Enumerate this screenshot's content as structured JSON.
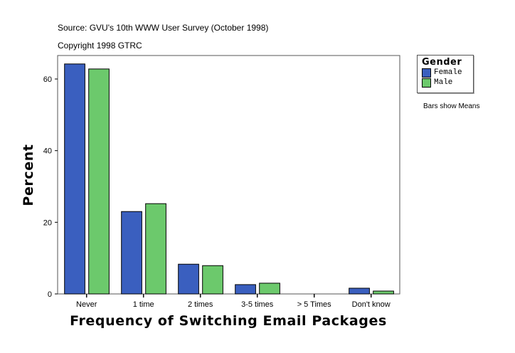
{
  "header": {
    "source": "Source: GVU's 10th WWW User Survey (October 1998)",
    "copyright": "Copyright 1998 GTRC"
  },
  "note": "Bars show Means",
  "chart_data": {
    "type": "bar",
    "categories": [
      "Never",
      "1 time",
      "2 times",
      "3-5 times",
      "> 5 Times",
      "Don't know"
    ],
    "series": [
      {
        "name": "Female",
        "color": "#3a5fbf",
        "values": [
          64.2,
          23.0,
          8.3,
          2.6,
          0,
          1.6
        ]
      },
      {
        "name": "Male",
        "color": "#6cc96c",
        "values": [
          62.8,
          25.2,
          7.9,
          3.0,
          0,
          0.8
        ]
      }
    ],
    "xlabel": "Frequency of Switching Email Packages",
    "ylabel": "Percent",
    "ylim": [
      0,
      66
    ],
    "yticks": [
      0,
      20,
      40,
      60
    ],
    "legend_title": "Gender",
    "legend_position": "right",
    "grid": false
  }
}
